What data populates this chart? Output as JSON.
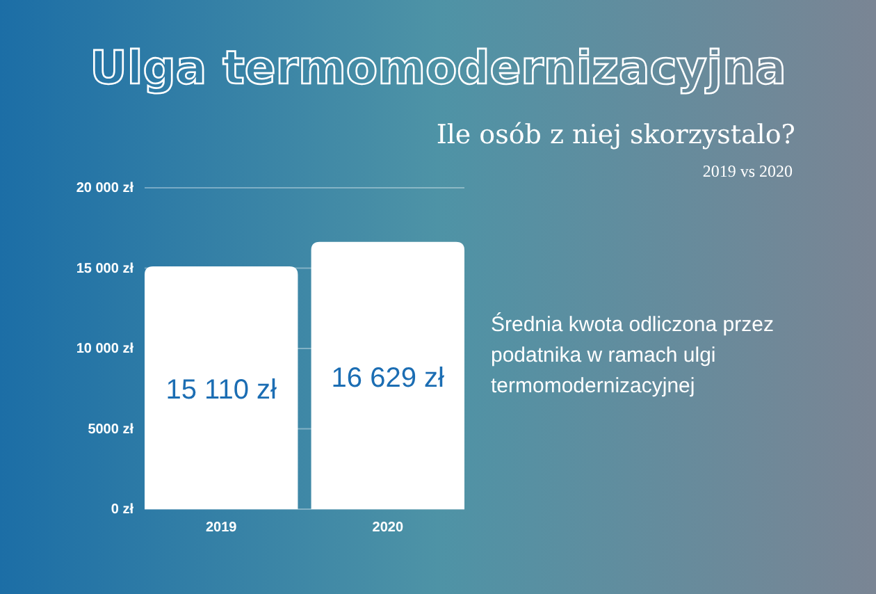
{
  "chart_data": {
    "type": "bar",
    "title": "Ulga termomodernizacyjna",
    "subtitle": "Ile osób z niej skorzystalo?",
    "annotations": [
      "2019 vs 2020",
      "Średnia kwota odliczona przez podatnika  w ramach ulgi termomodernizacyjnej"
    ],
    "categories": [
      "2019",
      "2020"
    ],
    "values": [
      15110,
      16629
    ],
    "color": "#ffffff",
    "value_labels": [
      "15 110 zł",
      "16 629 zł"
    ],
    "ylim": [
      0,
      20000
    ],
    "yticks": [
      {
        "value": 0,
        "label": "0 zł"
      },
      {
        "value": 5000,
        "label": "5000 zł"
      },
      {
        "value": 10000,
        "label": "10 000 zł"
      },
      {
        "value": 15000,
        "label": "15 000 zł"
      },
      {
        "value": 20000,
        "label": "20 000 zł"
      }
    ],
    "grid": "y"
  }
}
